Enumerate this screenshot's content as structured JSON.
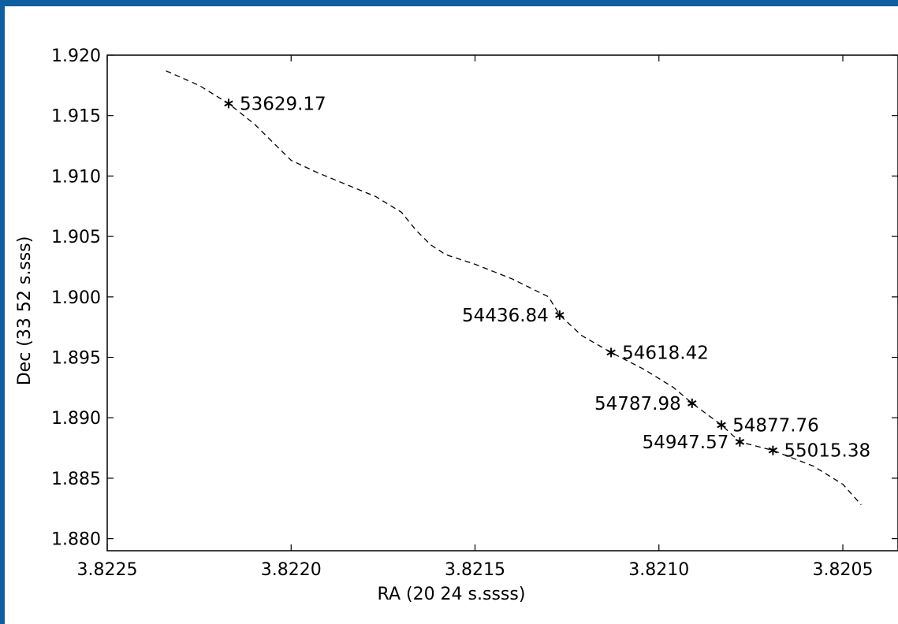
{
  "chart_data": {
    "type": "scatter",
    "title": "",
    "xlabel": "RA (20 24 s.ssss)",
    "ylabel": "Dec (33 52 s.sss)",
    "xlim": [
      3.8225,
      3.82035
    ],
    "ylim": [
      1.879,
      1.92
    ],
    "x_reversed": true,
    "x_ticks": [
      "3.8225",
      "3.8220",
      "3.8215",
      "3.8210",
      "3.8205"
    ],
    "x_tick_values": [
      3.8225,
      3.822,
      3.8215,
      3.821,
      3.8205
    ],
    "y_ticks": [
      "1.880",
      "1.885",
      "1.890",
      "1.895",
      "1.900",
      "1.905",
      "1.910",
      "1.915",
      "1.920"
    ],
    "y_tick_values": [
      1.88,
      1.885,
      1.89,
      1.895,
      1.9,
      1.905,
      1.91,
      1.915,
      1.92
    ],
    "grid": false,
    "points": [
      {
        "x": 3.82217,
        "y": 1.916,
        "label": "53629.17",
        "anchor": "right"
      },
      {
        "x": 3.82127,
        "y": 1.8985,
        "label": "54436.84",
        "anchor": "left"
      },
      {
        "x": 3.82113,
        "y": 1.8954,
        "label": "54618.42",
        "anchor": "right"
      },
      {
        "x": 3.82091,
        "y": 1.8912,
        "label": "54787.98",
        "anchor": "left"
      },
      {
        "x": 3.82083,
        "y": 1.8894,
        "label": "54877.76",
        "anchor": "right"
      },
      {
        "x": 3.82078,
        "y": 1.888,
        "label": "54947.57",
        "anchor": "left"
      },
      {
        "x": 3.82069,
        "y": 1.8873,
        "label": "55015.38",
        "anchor": "right"
      }
    ],
    "track": {
      "style": "dashed",
      "x": [
        3.82234,
        3.82225,
        3.82217,
        3.8221,
        3.82204,
        3.822,
        3.82193,
        3.82185,
        3.82177,
        3.8217,
        3.82166,
        3.82162,
        3.82158,
        3.8215,
        3.8214,
        3.8213,
        3.82127,
        3.82121,
        3.82113,
        3.82104,
        3.82096,
        3.82091,
        3.82083,
        3.82078,
        3.82069,
        3.82058,
        3.8205,
        3.82045
      ],
      "y": [
        1.9187,
        1.9175,
        1.916,
        1.9143,
        1.9125,
        1.9113,
        1.9103,
        1.9093,
        1.9083,
        1.907,
        1.9055,
        1.9043,
        1.9035,
        1.9027,
        1.9015,
        1.9,
        1.8985,
        1.8968,
        1.8954,
        1.894,
        1.8925,
        1.8912,
        1.8894,
        1.888,
        1.8873,
        1.886,
        1.8845,
        1.8828
      ]
    }
  }
}
